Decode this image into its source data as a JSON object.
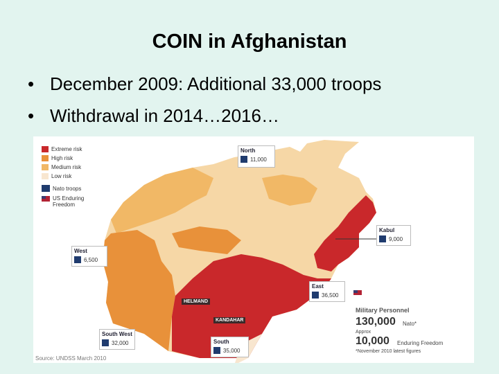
{
  "title": "COIN in Afghanistan",
  "bullets": [
    "December 2009: Additional 33,000 troops",
    "Withdrawal in 2014…2016…"
  ],
  "map": {
    "legend": [
      "Extreme risk",
      "High risk",
      "Medium risk",
      "Low risk",
      "Nato troops",
      "US Enduring Freedom"
    ],
    "regions": [
      {
        "name": "North",
        "troops": "11,000"
      },
      {
        "name": "Kabul",
        "troops": "9,000"
      },
      {
        "name": "West",
        "troops": "6,500"
      },
      {
        "name": "East",
        "troops": "36,500"
      },
      {
        "name": "South West",
        "troops": "32,000"
      },
      {
        "name": "South",
        "troops": "35,000"
      }
    ],
    "provinces": [
      "HELMAND",
      "KANDAHAR"
    ],
    "summary": {
      "title": "Military Personnel",
      "nato_count": "130,000",
      "nato_label": "Nato*",
      "approx": "Approx",
      "oef_count": "10,000",
      "oef_label": "Enduring Freedom",
      "note": "*November 2010 latest figures"
    },
    "source": "Source: UNDSS March 2010"
  }
}
